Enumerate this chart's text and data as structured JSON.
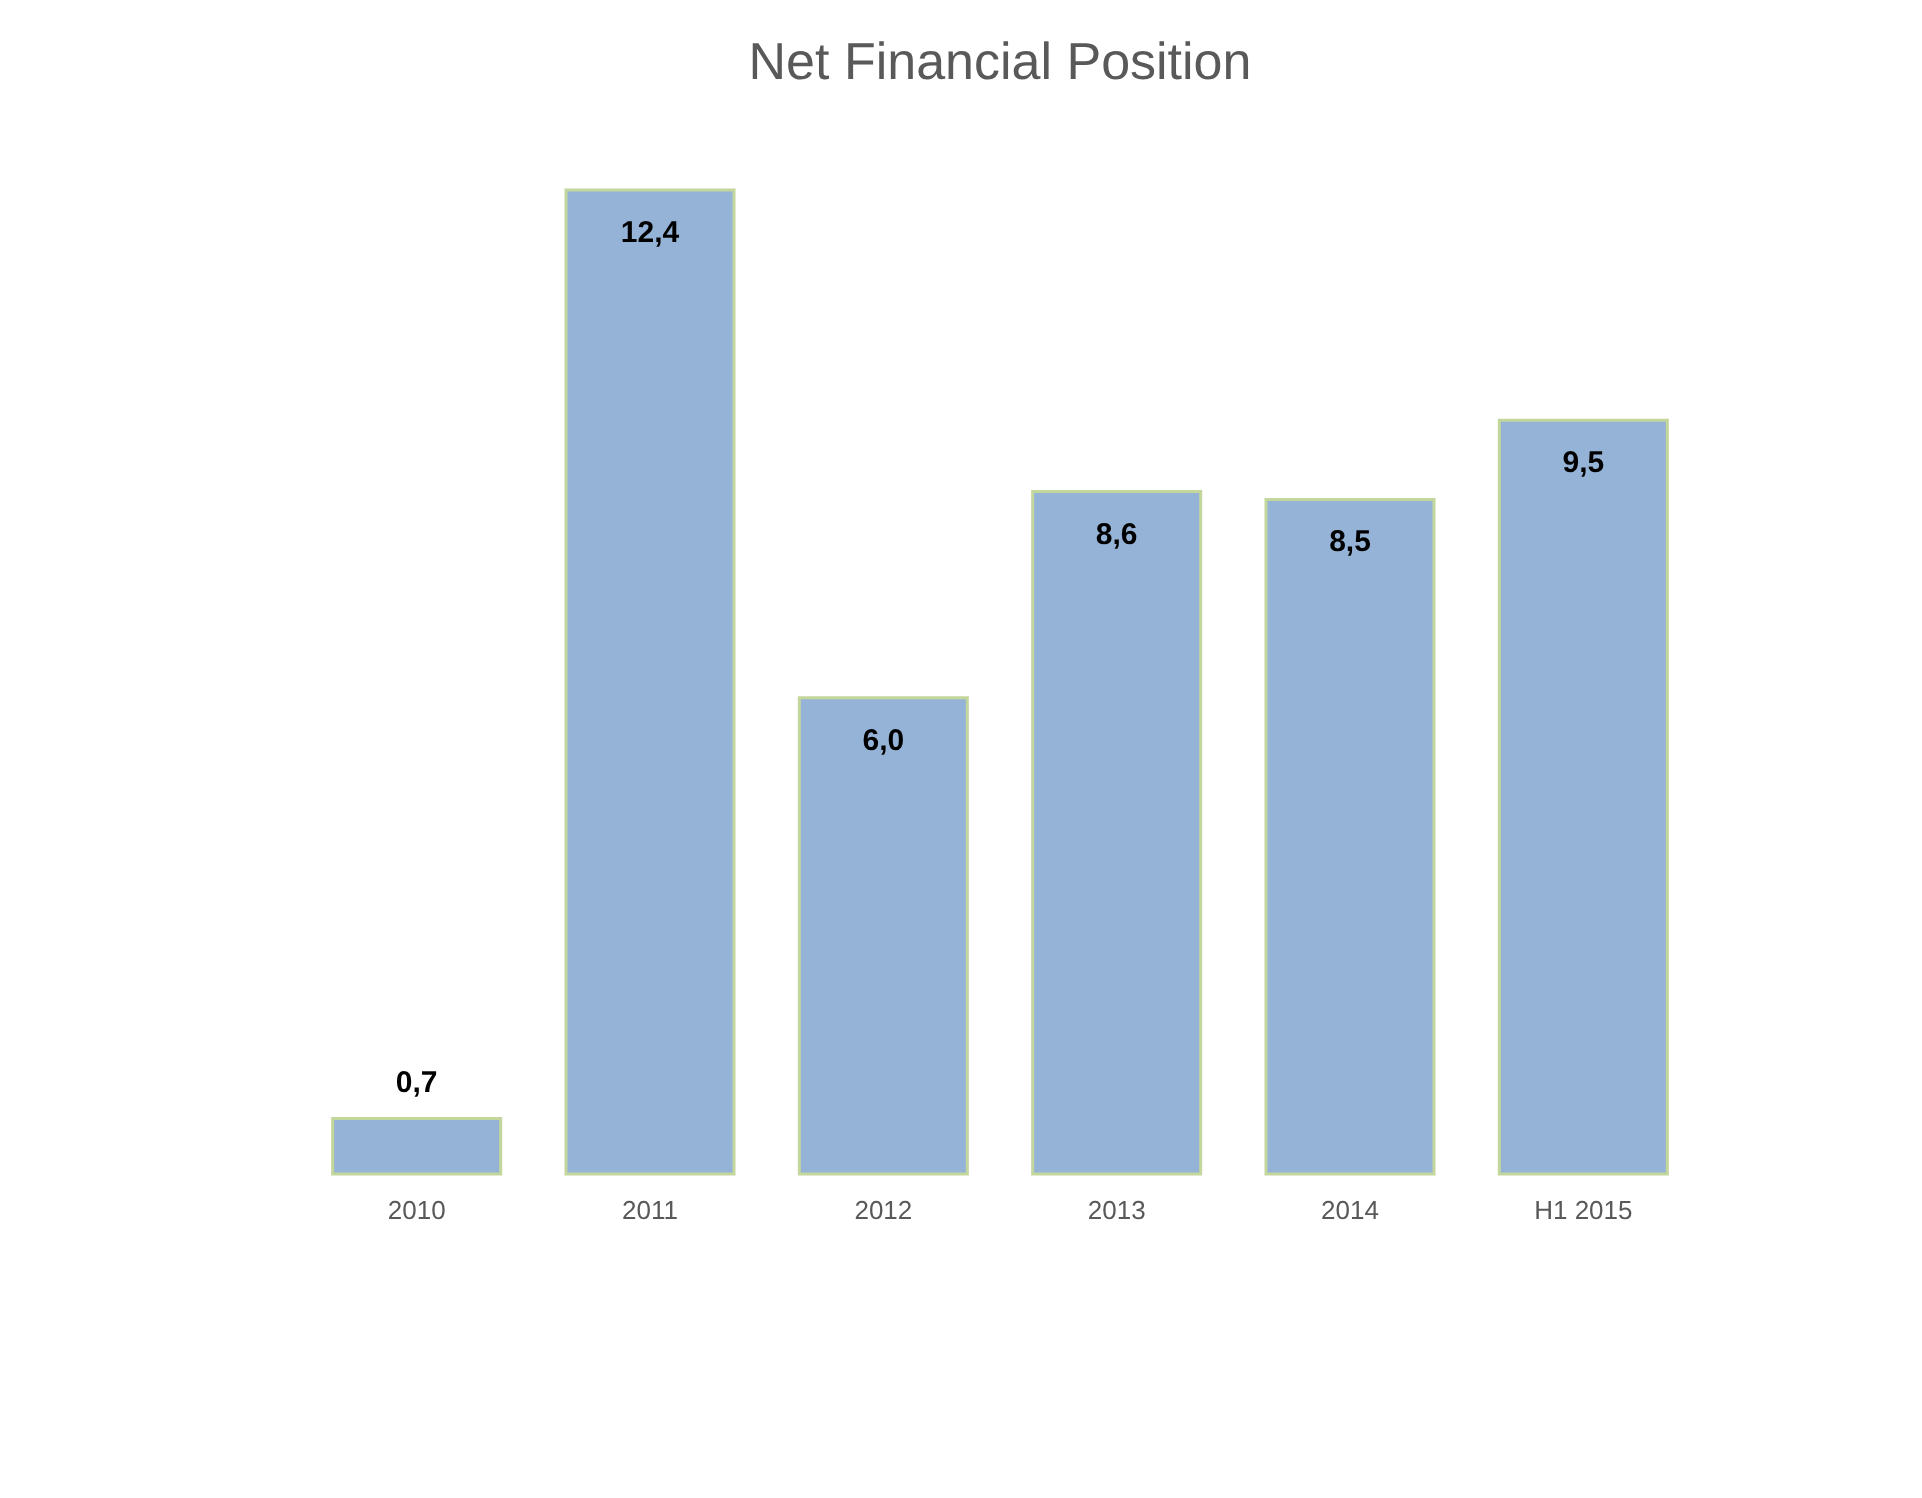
{
  "chart_data": {
    "type": "bar",
    "title": "Net Financial Position",
    "categories": [
      "2010",
      "2011",
      "2012",
      "2013",
      "2014",
      "H1 2015"
    ],
    "values": [
      0.7,
      12.4,
      6.0,
      8.6,
      8.5,
      9.5
    ],
    "value_labels": [
      "0,7",
      "12,4",
      "6,0",
      "8,6",
      "8,5",
      "9,5"
    ],
    "color": "#95b3d7"
  }
}
